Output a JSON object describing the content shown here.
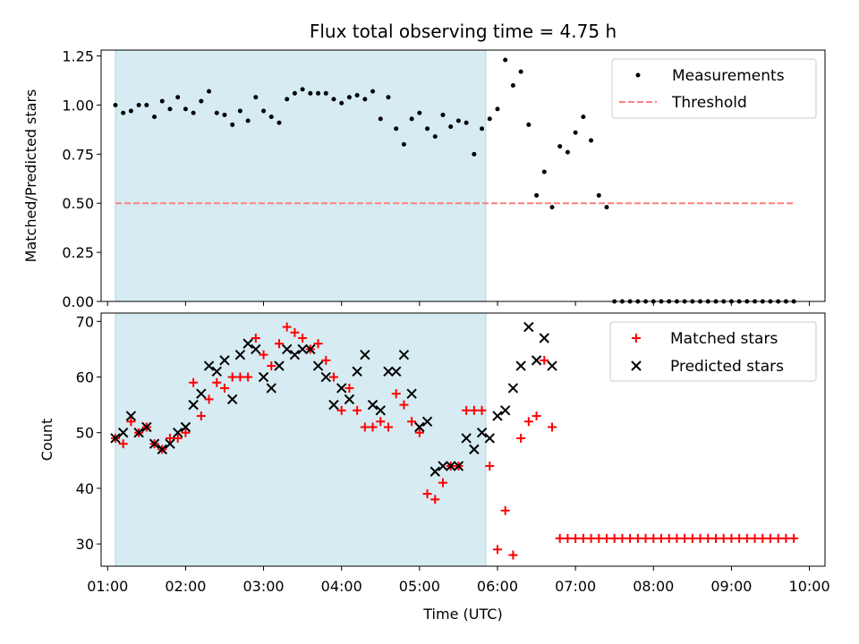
{
  "chart_data": [
    {
      "type": "scatter",
      "title": "Flux total observing time = 4.75 h",
      "xlabel": "",
      "ylabel": "Matched/Predicted stars",
      "ylim": [
        0,
        1.28
      ],
      "yticks": [
        "0.00",
        "0.25",
        "0.50",
        "0.75",
        "1.00",
        "1.25"
      ],
      "ytick_values": [
        0,
        0.25,
        0.5,
        0.75,
        1.0,
        1.25
      ],
      "xlim": [
        "00:55",
        "10:12"
      ],
      "shaded_span": [
        "01:06",
        "05:51"
      ],
      "legend_position": "top-right",
      "grid": false,
      "series": [
        {
          "name": "Measurements",
          "marker": "dot",
          "color": "#000000",
          "x": [
            "01:06",
            "01:12",
            "01:18",
            "01:24",
            "01:30",
            "01:36",
            "01:42",
            "01:48",
            "01:54",
            "02:00",
            "02:06",
            "02:12",
            "02:18",
            "02:24",
            "02:30",
            "02:36",
            "02:42",
            "02:48",
            "02:54",
            "03:00",
            "03:06",
            "03:12",
            "03:18",
            "03:24",
            "03:30",
            "03:36",
            "03:42",
            "03:48",
            "03:54",
            "04:00",
            "04:06",
            "04:12",
            "04:18",
            "04:24",
            "04:30",
            "04:36",
            "04:42",
            "04:48",
            "04:54",
            "05:00",
            "05:06",
            "05:12",
            "05:18",
            "05:24",
            "05:30",
            "05:36",
            "05:42",
            "05:48",
            "05:54",
            "06:00",
            "06:06",
            "06:12",
            "06:18",
            "06:24",
            "06:30",
            "06:36",
            "06:42",
            "06:48",
            "06:54",
            "07:00",
            "07:06",
            "07:12",
            "07:18",
            "07:24",
            "07:30",
            "07:36",
            "07:42",
            "07:48",
            "07:54",
            "08:00",
            "08:06",
            "08:12",
            "08:18",
            "08:24",
            "08:30",
            "08:36",
            "08:42",
            "08:48",
            "08:54",
            "09:00",
            "09:06",
            "09:12",
            "09:18",
            "09:24",
            "09:30",
            "09:36",
            "09:42",
            "09:48"
          ],
          "y": [
            1.0,
            0.96,
            0.97,
            1.0,
            1.0,
            0.94,
            1.02,
            0.98,
            1.04,
            0.98,
            0.96,
            1.02,
            1.07,
            0.96,
            0.95,
            0.9,
            0.97,
            0.92,
            1.04,
            0.97,
            0.94,
            0.91,
            1.03,
            1.06,
            1.08,
            1.06,
            1.06,
            1.06,
            1.03,
            1.01,
            1.04,
            1.05,
            1.03,
            1.07,
            0.93,
            1.04,
            0.88,
            0.8,
            0.93,
            0.96,
            0.88,
            0.84,
            0.95,
            0.89,
            0.92,
            0.91,
            0.75,
            0.88,
            0.93,
            0.98,
            1.23,
            1.1,
            1.17,
            0.9,
            0.54,
            0.66,
            0.48,
            0.79,
            0.76,
            0.86,
            0.94,
            0.82,
            0.54,
            0.48,
            0,
            0,
            0,
            0,
            0,
            0,
            0,
            0,
            0,
            0,
            0,
            0,
            0,
            0,
            0,
            0,
            0,
            0,
            0,
            0,
            0,
            0,
            0,
            0
          ]
        },
        {
          "name": "Threshold",
          "style": "dashed",
          "color": "#ff7f7f",
          "x": [
            "01:06",
            "09:48"
          ],
          "y": [
            0.5,
            0.5
          ]
        }
      ]
    },
    {
      "type": "scatter",
      "title": "",
      "xlabel": "Time (UTC)",
      "ylabel": "Count",
      "ylim": [
        26,
        71.5
      ],
      "yticks": [
        "30",
        "40",
        "50",
        "60",
        "70"
      ],
      "ytick_values": [
        30,
        40,
        50,
        60,
        70
      ],
      "xlim": [
        "00:55",
        "10:12"
      ],
      "xticks": [
        "01:00",
        "02:00",
        "03:00",
        "04:00",
        "05:00",
        "06:00",
        "07:00",
        "08:00",
        "09:00",
        "10:00"
      ],
      "shaded_span": [
        "01:06",
        "05:51"
      ],
      "legend_position": "top-right",
      "grid": false,
      "series": [
        {
          "name": "Matched stars",
          "marker": "plus",
          "color": "#ff0000",
          "x": [
            "01:06",
            "01:12",
            "01:18",
            "01:24",
            "01:30",
            "01:36",
            "01:42",
            "01:48",
            "01:54",
            "02:00",
            "02:06",
            "02:12",
            "02:18",
            "02:24",
            "02:30",
            "02:36",
            "02:42",
            "02:48",
            "02:54",
            "03:00",
            "03:06",
            "03:12",
            "03:18",
            "03:24",
            "03:30",
            "03:36",
            "03:42",
            "03:48",
            "03:54",
            "04:00",
            "04:06",
            "04:12",
            "04:18",
            "04:24",
            "04:30",
            "04:36",
            "04:42",
            "04:48",
            "04:54",
            "05:00",
            "05:06",
            "05:12",
            "05:18",
            "05:24",
            "05:30",
            "05:36",
            "05:42",
            "05:48",
            "05:54",
            "06:00",
            "06:06",
            "06:12",
            "06:18",
            "06:24",
            "06:30",
            "06:36",
            "06:42",
            "06:48",
            "06:54",
            "07:00",
            "07:06",
            "07:12",
            "07:18",
            "07:24",
            "07:30",
            "07:36",
            "07:42",
            "07:48",
            "07:54",
            "08:00",
            "08:06",
            "08:12",
            "08:18",
            "08:24",
            "08:30",
            "08:36",
            "08:42",
            "08:48",
            "08:54",
            "09:00",
            "09:06",
            "09:12",
            "09:18",
            "09:24",
            "09:30",
            "09:36",
            "09:42",
            "09:48"
          ],
          "y": [
            49,
            48,
            52,
            50,
            51,
            48,
            47,
            49,
            49,
            50,
            59,
            53,
            56,
            59,
            58,
            60,
            60,
            60,
            67,
            64,
            62,
            66,
            69,
            68,
            67,
            65,
            66,
            63,
            60,
            54,
            58,
            54,
            51,
            51,
            52,
            51,
            57,
            55,
            52,
            50,
            39,
            38,
            41,
            44,
            44,
            54,
            54,
            54,
            44,
            29,
            36,
            28,
            49,
            52,
            53,
            63,
            51,
            31,
            31,
            31,
            31,
            31,
            31,
            31,
            31,
            31,
            31,
            31,
            31,
            31,
            31,
            31,
            31,
            31,
            31,
            31,
            31,
            31,
            31,
            31,
            31,
            31,
            31,
            31,
            31,
            31,
            31,
            31
          ]
        },
        {
          "name": "Predicted stars",
          "marker": "x",
          "color": "#000000",
          "x": [
            "01:06",
            "01:12",
            "01:18",
            "01:24",
            "01:30",
            "01:36",
            "01:42",
            "01:48",
            "01:54",
            "02:00",
            "02:06",
            "02:12",
            "02:18",
            "02:24",
            "02:30",
            "02:36",
            "02:42",
            "02:48",
            "02:54",
            "03:00",
            "03:06",
            "03:12",
            "03:18",
            "03:24",
            "03:30",
            "03:36",
            "03:42",
            "03:48",
            "03:54",
            "04:00",
            "04:06",
            "04:12",
            "04:18",
            "04:24",
            "04:30",
            "04:36",
            "04:42",
            "04:48",
            "04:54",
            "05:00",
            "05:06",
            "05:12",
            "05:18",
            "05:24",
            "05:30",
            "05:36",
            "05:42",
            "05:48",
            "05:54",
            "06:00",
            "06:06",
            "06:12",
            "06:18",
            "06:24",
            "06:30",
            "06:36",
            "06:42"
          ],
          "y": [
            49,
            50,
            53,
            50,
            51,
            48,
            47,
            48,
            50,
            51,
            55,
            57,
            62,
            61,
            63,
            56,
            64,
            66,
            65,
            60,
            58,
            62,
            65,
            64,
            65,
            65,
            62,
            60,
            55,
            58,
            56,
            61,
            64,
            55,
            54,
            61,
            61,
            64,
            57,
            51,
            52,
            43,
            44,
            44,
            44,
            49,
            47,
            50,
            49,
            53,
            54,
            58,
            62,
            69,
            63,
            67,
            62
          ]
        }
      ]
    }
  ]
}
